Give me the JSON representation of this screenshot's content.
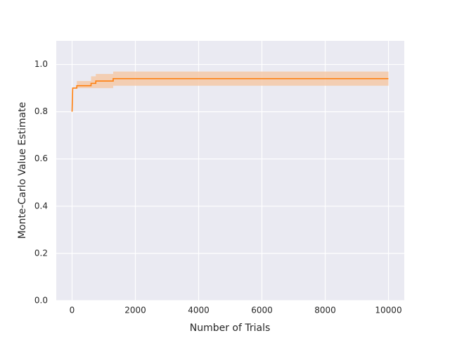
{
  "chart_data": {
    "type": "line",
    "xlabel": "Number of Trials",
    "ylabel": "Monte-Carlo Value Estimate",
    "x": [
      0,
      20,
      150,
      150,
      600,
      600,
      750,
      750,
      1300,
      1300,
      10000
    ],
    "values": [
      0.8,
      0.9,
      0.9,
      0.91,
      0.91,
      0.92,
      0.92,
      0.93,
      0.93,
      0.94,
      0.94
    ],
    "band_lower": [
      0.8,
      0.9,
      0.9,
      0.9,
      0.9,
      0.9,
      0.9,
      0.9,
      0.9,
      0.91,
      0.91
    ],
    "band_upper": [
      0.8,
      0.9,
      0.9,
      0.93,
      0.93,
      0.95,
      0.95,
      0.96,
      0.96,
      0.97,
      0.97
    ],
    "color": "#ff7f0e",
    "band_color": "#f5c9a8",
    "xlim": [
      -500,
      10500
    ],
    "ylim": [
      0,
      1.1
    ],
    "xticks": [
      0,
      2000,
      4000,
      6000,
      8000,
      10000
    ],
    "yticks": [
      {
        "value": 0,
        "label": "0.0"
      },
      0.2,
      0.4,
      0.6,
      0.8,
      {
        "value": 1,
        "label": "1.0"
      }
    ],
    "grid": true
  }
}
